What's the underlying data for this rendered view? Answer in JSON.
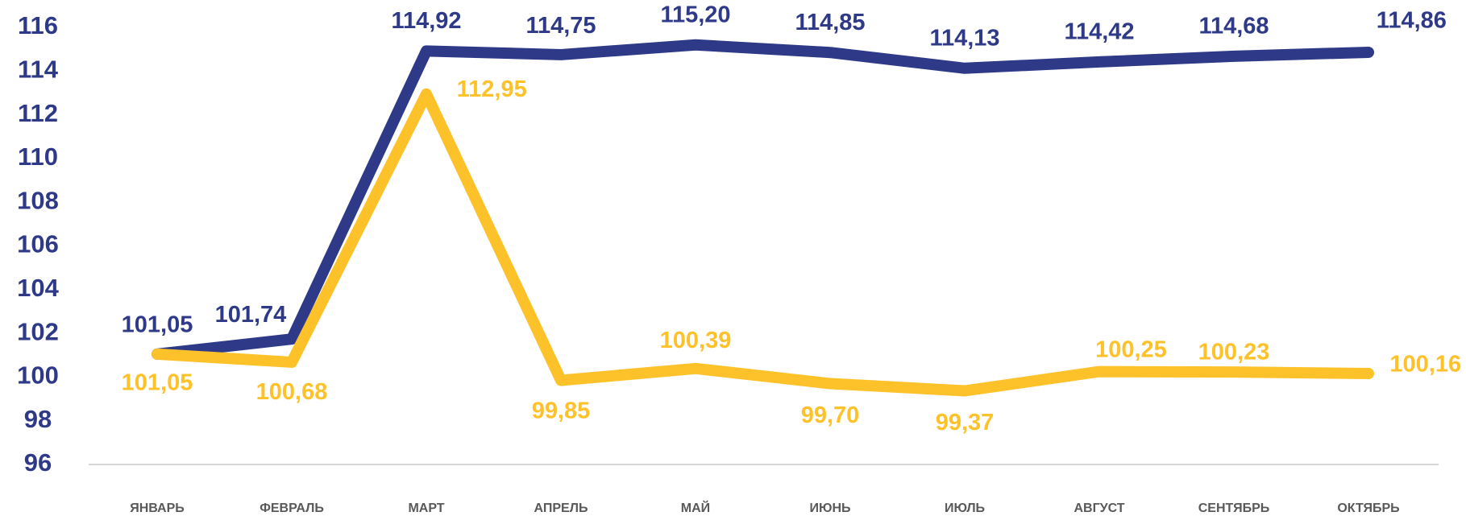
{
  "chart_data": {
    "type": "line",
    "categories": [
      "ЯНВАРЬ",
      "ФЕВРАЛЬ",
      "МАРТ",
      "АПРЕЛЬ",
      "МАЙ",
      "ИЮНЬ",
      "ИЮЛЬ",
      "АВГУСТ",
      "СЕНТЯБРЬ",
      "ОКТЯБРЬ"
    ],
    "series": [
      {
        "color": "#2e3a87",
        "values": [
          101.05,
          101.74,
          114.92,
          114.75,
          115.2,
          114.85,
          114.13,
          114.42,
          114.68,
          114.86
        ],
        "value_labels": [
          "101,05",
          "101,74",
          "114,92",
          "114,75",
          "115,20",
          "114,85",
          "114,13",
          "114,42",
          "114,68",
          "114,86"
        ]
      },
      {
        "color": "#fdc12a",
        "values": [
          101.05,
          100.68,
          112.95,
          99.85,
          100.39,
          99.7,
          99.37,
          100.25,
          100.23,
          100.16
        ],
        "value_labels": [
          "101,05",
          "100,68",
          "112,95",
          "99,85",
          "100,39",
          "99,70",
          "99,37",
          "100,25",
          "100,23",
          "100,16"
        ]
      }
    ],
    "ylim": [
      96,
      116
    ],
    "yticks": [
      96,
      98,
      100,
      102,
      104,
      106,
      108,
      110,
      112,
      114,
      116
    ]
  }
}
